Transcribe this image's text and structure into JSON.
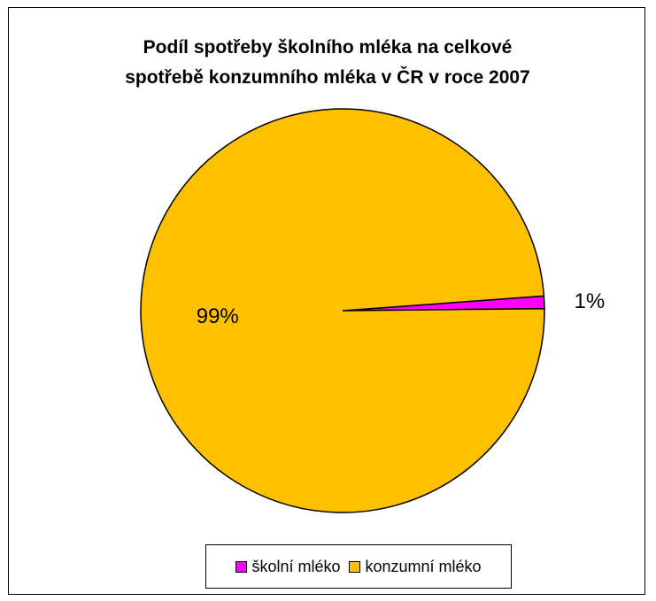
{
  "title_lines": [
    "Podíl spotřeby školního mléka na celkové",
    "spotřebě konzumního mléka v ČR v roce 2007"
  ],
  "chart_data": {
    "type": "pie",
    "title": "Podíl spotřeby školního mléka na celkové spotřebě konzumního mléka v ČR v roce 2007",
    "categories": [
      "školní mléko",
      "konzumní mléko"
    ],
    "values": [
      1,
      99
    ],
    "data_labels": [
      "1%",
      "99%"
    ],
    "colors": [
      "#ff00ff",
      "#ffc000"
    ],
    "legend_position": "bottom"
  }
}
